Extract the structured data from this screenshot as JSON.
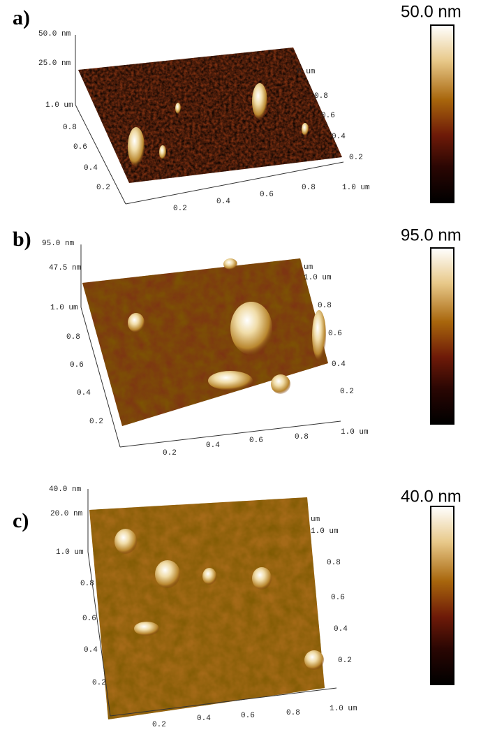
{
  "panels": [
    {
      "label": "a)",
      "scale_label": "50.0 nm",
      "z_labels": [
        "50.0 nm",
        "25.0 nm"
      ],
      "y_labels": [
        "1.0 um",
        "0.8",
        "0.6",
        "0.4",
        "0.2"
      ],
      "x_labels": [
        "0.2",
        "0.4",
        "0.6",
        "0.8",
        "1.0 um"
      ],
      "right_labels": [
        "0 um",
        "0.8",
        "0.6",
        "0.4",
        "0.2"
      ]
    },
    {
      "label": "b)",
      "scale_label": "95.0 nm",
      "z_labels": [
        "95.0 nm",
        "47.5 nm"
      ],
      "y_labels": [
        "1.0 um",
        "0.8",
        "0.6",
        "0.4",
        "0.2"
      ],
      "x_labels": [
        "0.2",
        "0.4",
        "0.6",
        "0.8",
        "1.0 um"
      ],
      "right_labels": [
        "um",
        "1.0 um",
        "0.8",
        "0.6",
        "0.4",
        "0.2"
      ]
    },
    {
      "label": "c)",
      "scale_label": "40.0 nm",
      "z_labels": [
        "40.0 nm",
        "20.0 nm"
      ],
      "y_labels": [
        "1.0 um",
        "0.8",
        "0.6",
        "0.4",
        "0.2"
      ],
      "x_labels": [
        "0.2",
        "0.4",
        "0.6",
        "0.8",
        "1.0 um"
      ],
      "right_labels": [
        "um",
        "1.0 um",
        "0.8",
        "0.6",
        "0.4",
        "0.2"
      ]
    }
  ]
}
